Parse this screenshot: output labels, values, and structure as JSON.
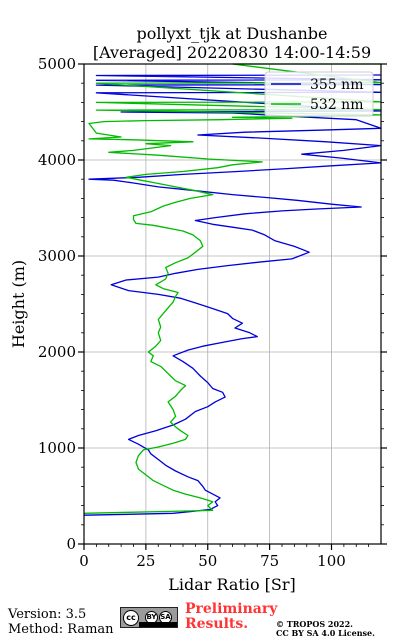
{
  "chart_data": {
    "type": "line",
    "title": "pollyxt_tjk at Dushanbe",
    "subtitle": "[Averaged] 20220830 14:00-14:59",
    "xlabel": "Lidar Ratio [Sr]",
    "ylabel": "Height (m)",
    "xlim": [
      0,
      120
    ],
    "ylim": [
      0,
      5000
    ],
    "xticks": [
      0,
      25,
      50,
      75,
      100
    ],
    "yticks": [
      0,
      1000,
      2000,
      3000,
      4000,
      5000
    ],
    "grid": true,
    "legend_position": "top-right",
    "series": [
      {
        "name": "355 nm",
        "color": "#0000dd",
        "points": [
          [
            0,
            300
          ],
          [
            20,
            310
          ],
          [
            36,
            320
          ],
          [
            44,
            340
          ],
          [
            51,
            360
          ],
          [
            54,
            400
          ],
          [
            53,
            440
          ],
          [
            55,
            480
          ],
          [
            52,
            520
          ],
          [
            49,
            560
          ],
          [
            48,
            600
          ],
          [
            46,
            660
          ],
          [
            42,
            700
          ],
          [
            37,
            760
          ],
          [
            33,
            820
          ],
          [
            30,
            880
          ],
          [
            27,
            940
          ],
          [
            26,
            980
          ],
          [
            22,
            1040
          ],
          [
            18,
            1090
          ],
          [
            22,
            1130
          ],
          [
            29,
            1180
          ],
          [
            36,
            1240
          ],
          [
            41,
            1300
          ],
          [
            45,
            1380
          ],
          [
            50,
            1430
          ],
          [
            53,
            1480
          ],
          [
            57,
            1530
          ],
          [
            56,
            1580
          ],
          [
            52,
            1620
          ],
          [
            50,
            1680
          ],
          [
            47,
            1750
          ],
          [
            44,
            1830
          ],
          [
            40,
            1900
          ],
          [
            36,
            1960
          ],
          [
            42,
            2020
          ],
          [
            48,
            2060
          ],
          [
            56,
            2100
          ],
          [
            64,
            2140
          ],
          [
            70,
            2160
          ],
          [
            67,
            2200
          ],
          [
            61,
            2250
          ],
          [
            64,
            2300
          ],
          [
            60,
            2350
          ],
          [
            58,
            2400
          ],
          [
            51,
            2460
          ],
          [
            44,
            2520
          ],
          [
            39,
            2560
          ],
          [
            30,
            2600
          ],
          [
            18,
            2640
          ],
          [
            11,
            2700
          ],
          [
            17,
            2750
          ],
          [
            30,
            2780
          ],
          [
            37,
            2820
          ],
          [
            46,
            2860
          ],
          [
            58,
            2900
          ],
          [
            72,
            2940
          ],
          [
            84,
            2970
          ],
          [
            91,
            3040
          ],
          [
            85,
            3100
          ],
          [
            77,
            3160
          ],
          [
            73,
            3220
          ],
          [
            68,
            3270
          ],
          [
            60,
            3300
          ],
          [
            52,
            3330
          ],
          [
            45,
            3370
          ],
          [
            53,
            3400
          ],
          [
            65,
            3440
          ],
          [
            80,
            3470
          ],
          [
            94,
            3490
          ],
          [
            112,
            3510
          ],
          [
            100,
            3540
          ],
          [
            86,
            3580
          ],
          [
            73,
            3610
          ],
          [
            60,
            3640
          ],
          [
            45,
            3680
          ],
          [
            30,
            3720
          ],
          [
            20,
            3760
          ],
          [
            12,
            3790
          ],
          [
            2,
            3800
          ],
          [
            22,
            3820
          ],
          [
            40,
            3850
          ],
          [
            62,
            3880
          ],
          [
            82,
            3910
          ],
          [
            100,
            3940
          ],
          [
            120,
            3970
          ],
          [
            104,
            4020
          ],
          [
            88,
            4060
          ],
          [
            105,
            4100
          ],
          [
            120,
            4150
          ],
          [
            98,
            4190
          ],
          [
            70,
            4230
          ],
          [
            46,
            4260
          ],
          [
            65,
            4290
          ],
          [
            95,
            4310
          ],
          [
            120,
            4330
          ],
          [
            110,
            4420
          ],
          [
            80,
            4460
          ],
          [
            60,
            4490
          ],
          [
            15,
            4500
          ],
          [
            120,
            4510
          ],
          [
            5,
            4700
          ],
          [
            120,
            4705
          ],
          [
            5,
            4780
          ],
          [
            120,
            4785
          ],
          [
            5,
            4830
          ],
          [
            120,
            4835
          ],
          [
            5,
            4880
          ],
          [
            120,
            4885
          ]
        ]
      },
      {
        "name": "532 nm",
        "color": "#00bb00",
        "points": [
          [
            0,
            320
          ],
          [
            18,
            330
          ],
          [
            35,
            340
          ],
          [
            52,
            350
          ],
          [
            50,
            400
          ],
          [
            52,
            440
          ],
          [
            47,
            480
          ],
          [
            41,
            520
          ],
          [
            36,
            560
          ],
          [
            32,
            610
          ],
          [
            28,
            660
          ],
          [
            25,
            720
          ],
          [
            22,
            780
          ],
          [
            21,
            850
          ],
          [
            22,
            920
          ],
          [
            24,
            980
          ],
          [
            30,
            1010
          ],
          [
            36,
            1050
          ],
          [
            41,
            1090
          ],
          [
            42,
            1130
          ],
          [
            39,
            1180
          ],
          [
            37,
            1220
          ],
          [
            35,
            1270
          ],
          [
            37,
            1330
          ],
          [
            36,
            1400
          ],
          [
            34,
            1480
          ],
          [
            37,
            1540
          ],
          [
            39,
            1600
          ],
          [
            41,
            1650
          ],
          [
            37,
            1700
          ],
          [
            35,
            1750
          ],
          [
            33,
            1800
          ],
          [
            31,
            1850
          ],
          [
            27,
            1900
          ],
          [
            28,
            1960
          ],
          [
            26,
            2000
          ],
          [
            29,
            2060
          ],
          [
            31,
            2120
          ],
          [
            30,
            2200
          ],
          [
            31,
            2260
          ],
          [
            30,
            2340
          ],
          [
            32,
            2400
          ],
          [
            34,
            2460
          ],
          [
            36,
            2520
          ],
          [
            37,
            2580
          ],
          [
            38,
            2620
          ],
          [
            32,
            2660
          ],
          [
            29,
            2700
          ],
          [
            33,
            2760
          ],
          [
            34,
            2820
          ],
          [
            33,
            2880
          ],
          [
            37,
            2930
          ],
          [
            42,
            2980
          ],
          [
            45,
            3040
          ],
          [
            48,
            3100
          ],
          [
            47,
            3160
          ],
          [
            44,
            3220
          ],
          [
            40,
            3260
          ],
          [
            36,
            3280
          ],
          [
            32,
            3300
          ],
          [
            28,
            3320
          ],
          [
            21,
            3340
          ],
          [
            20,
            3380
          ],
          [
            20,
            3420
          ],
          [
            27,
            3460
          ],
          [
            32,
            3520
          ],
          [
            37,
            3560
          ],
          [
            43,
            3600
          ],
          [
            52,
            3640
          ],
          [
            45,
            3680
          ],
          [
            37,
            3720
          ],
          [
            29,
            3760
          ],
          [
            23,
            3790
          ],
          [
            17,
            3820
          ],
          [
            25,
            3850
          ],
          [
            40,
            3880
          ],
          [
            54,
            3920
          ],
          [
            60,
            3950
          ],
          [
            72,
            3980
          ],
          [
            50,
            4010
          ],
          [
            30,
            4050
          ],
          [
            10,
            4080
          ],
          [
            20,
            4100
          ],
          [
            35,
            4150
          ],
          [
            25,
            4170
          ],
          [
            44,
            4190
          ],
          [
            20,
            4210
          ],
          [
            2,
            4220
          ],
          [
            15,
            4240
          ],
          [
            5,
            4280
          ],
          [
            2,
            4380
          ],
          [
            8,
            4400
          ],
          [
            25,
            4410
          ],
          [
            55,
            4420
          ],
          [
            84,
            4435
          ],
          [
            60,
            4445
          ],
          [
            90,
            4455
          ],
          [
            120,
            4470
          ],
          [
            5,
            4520
          ],
          [
            120,
            4525
          ],
          [
            5,
            4600
          ],
          [
            120,
            4605
          ],
          [
            5,
            4800
          ],
          [
            120,
            4805
          ],
          [
            60,
            5000
          ],
          [
            120,
            5000
          ]
        ]
      }
    ]
  },
  "footer": {
    "version": "Version: 3.5",
    "method": "Method: Raman",
    "cc_label": "cc",
    "cc_by": "BY",
    "cc_sa": "SA",
    "preliminary_line1": "Preliminary",
    "preliminary_line2": "Results.",
    "copyright_line1": "© TROPOS 2022.",
    "copyright_line2": "CC BY SA 4.0 License."
  }
}
